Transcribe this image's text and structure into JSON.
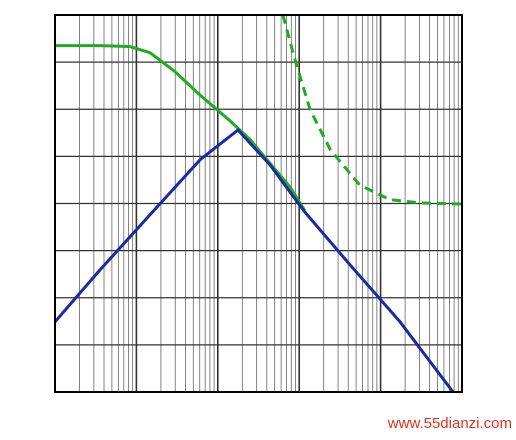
{
  "chart_data": {
    "type": "line",
    "log_x": true,
    "xlim": [
      10,
      1000000
    ],
    "xticks": [
      10,
      100,
      1000,
      10000,
      100000,
      1000000
    ],
    "ylim": [
      0,
      8
    ],
    "yticks": [
      0,
      1,
      2,
      3,
      4,
      5,
      6,
      7,
      8
    ],
    "grid": true,
    "series": [
      {
        "color": "#22aa22",
        "dash": false,
        "x": [
          10,
          35.7,
          83,
          147,
          297,
          606,
          1420,
          2510,
          4380,
          7700,
          11700
        ],
        "values": [
          7.35,
          7.35,
          7.33,
          7.2,
          6.8,
          6.3,
          5.75,
          5.35,
          4.85,
          4.35,
          3.85
        ]
      },
      {
        "color": "#22aa22",
        "dash": true,
        "x": [
          6310,
          8870,
          13600,
          24200,
          55600,
          131000,
          306000,
          1000000
        ],
        "values": [
          8,
          7.05,
          5.99,
          5.14,
          4.39,
          4.08,
          4.01,
          3.99
        ]
      },
      {
        "color": "#1a2aa0",
        "dash": false,
        "x": [
          10,
          35.7,
          147,
          606,
          1770,
          4380,
          11700,
          42100,
          173000,
          776000
        ],
        "values": [
          1.49,
          2.59,
          3.76,
          4.93,
          5.56,
          4.82,
          3.82,
          2.7,
          1.49,
          0
        ]
      }
    ],
    "watermark": "www.55dianzi.com"
  }
}
